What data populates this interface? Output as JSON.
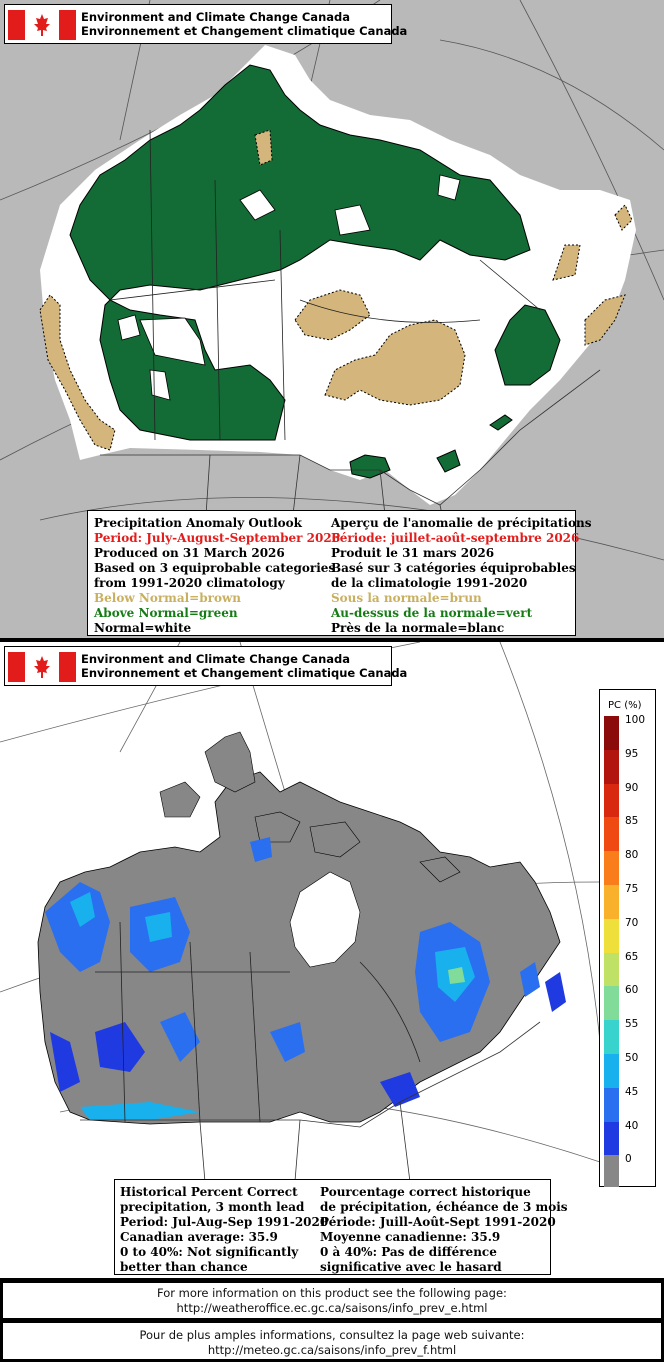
{
  "header": {
    "line1": "Environment and Climate Change Canada",
    "line2": "Environnement et Changement climatique Canada"
  },
  "outlook": {
    "en": {
      "title": "Precipitation Anomaly Outlook",
      "period": "Period: July-August-September 2026",
      "produced": "Produced on 31 March 2026",
      "basis1": "Based on 3 equiprobable categories",
      "basis2": "from 1991-2020 climatology",
      "below": "Below Normal=brown",
      "above": "Above Normal=green",
      "normal": "Normal=white"
    },
    "fr": {
      "title": "Aperçu de l'anomalie de précipitations",
      "period": "Période: juillet-août-septembre 2026",
      "produced": "Produit le 31 mars 2026",
      "basis1": "Basé sur 3 catégories équiprobables",
      "basis2": "de la climatologie 1991-2020",
      "below": "Sous la normale=brun",
      "above": "Au-dessus de la normale=vert",
      "normal": "Près de la normale=blanc"
    },
    "colors": {
      "below": "#d4b67c",
      "above": "#136b35",
      "normal": "#ffffff"
    }
  },
  "skill": {
    "en": {
      "l1": "Historical Percent Correct",
      "l2": "precipitation, 3 month lead",
      "l3": "Period: Jul-Aug-Sep 1991-2020",
      "l4": "Canadian average: 35.9",
      "l5": "0 to 40%: Not significantly",
      "l6": "better than chance"
    },
    "fr": {
      "l1": "Pourcentage correct historique",
      "l2": "de précipitation, échéance de 3 mois",
      "l3": "Période: Juill-Août-Sept 1991-2020",
      "l4": "Moyenne canadienne: 35.9",
      "l5": "0 à 40%: Pas de différence",
      "l6": "significative avec le hasard"
    },
    "scale_title": "PC (%)",
    "scale": [
      {
        "label": "100",
        "color": "#8b0a0a"
      },
      {
        "label": "95",
        "color": "#b2150d"
      },
      {
        "label": "90",
        "color": "#d8280f"
      },
      {
        "label": "85",
        "color": "#ef4a12"
      },
      {
        "label": "80",
        "color": "#f97d1b"
      },
      {
        "label": "75",
        "color": "#f9b02a"
      },
      {
        "label": "70",
        "color": "#eedf3a"
      },
      {
        "label": "65",
        "color": "#bfe266"
      },
      {
        "label": "60",
        "color": "#80dc98"
      },
      {
        "label": "55",
        "color": "#38d3cc"
      },
      {
        "label": "50",
        "color": "#18b1ee"
      },
      {
        "label": "45",
        "color": "#2a6ff0"
      },
      {
        "label": "40",
        "color": "#1f3ae0"
      },
      {
        "label": "0",
        "color": "#878787"
      }
    ]
  },
  "info_en": {
    "l1": "For more information on this product see the following page:",
    "l2": "http://weatheroffice.ec.gc.ca/saisons/info_prev_e.html"
  },
  "info_fr": {
    "l1": "Pour de plus amples informations, consultez la page web suivante:",
    "l2": "http://meteo.gc.ca/saisons/info_prev_f.html"
  }
}
